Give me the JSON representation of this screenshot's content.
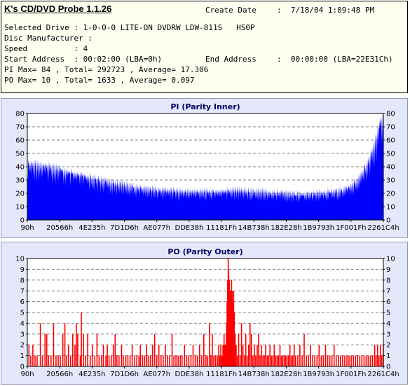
{
  "app": {
    "title": "K's CD/DVD Probe 1.1.26"
  },
  "info": {
    "create_date_label": "Create Date",
    "create_date_value": ":  7/18/04 1:09:48 PM",
    "selected_drive": "Selected Drive : 1-0-0-0 LITE-ON DVDRW LDW-811S   HS0P",
    "disc_manufacturer": "Disc Manufacturer :",
    "speed": "Speed          : 4",
    "start_address": "Start Address  : 00:02:00 (LBA=0h)",
    "end_address_label": "End Address",
    "end_address_value": ":  00:00:00 (LBA=22E31Ch)",
    "pi_summary": "PI Max= 84 , Total= 292723 , Average= 17.306",
    "po_summary": "PO Max= 10 , Total= 1633 , Average= 0.097"
  },
  "colors": {
    "pi_bar": "#0000ff",
    "po_bar": "#ff0000",
    "panel_bg": "#e4e8fa",
    "plot_bg": "#ffffff"
  },
  "chart_data": [
    {
      "type": "area",
      "title": "PI (Parity Inner)",
      "xlabel": "",
      "ylabel": "",
      "x_tick_labels": [
        "90h",
        "20566h",
        "4E235h",
        "7D1D6h",
        "AE077h",
        "DDE38h",
        "11181Fh",
        "14B738h",
        "182E28h",
        "1B9793h",
        "1F001Fh",
        "2261C4h"
      ],
      "ylim": [
        0,
        80
      ],
      "y_ticks": [
        0,
        10,
        20,
        30,
        40,
        50,
        60,
        70,
        80
      ],
      "grid": true,
      "series": [
        {
          "values": [
            42,
            43,
            42,
            41,
            41,
            40,
            39,
            37,
            36,
            35,
            34,
            33,
            32,
            31,
            30,
            29,
            28,
            27,
            27,
            26,
            25,
            24,
            24,
            23,
            23,
            22,
            22,
            22,
            22,
            21,
            21,
            21,
            21,
            21,
            21,
            21,
            21,
            21,
            22,
            22,
            22,
            22,
            21,
            21,
            21,
            21,
            20,
            20,
            20,
            20,
            19,
            19,
            19,
            19,
            19,
            20,
            20,
            20,
            21,
            21,
            22,
            24,
            26,
            30,
            36,
            44,
            55,
            70,
            84
          ]
        }
      ]
    },
    {
      "type": "bar",
      "title": "PO (Parity Outer)",
      "xlabel": "",
      "ylabel": "",
      "x_tick_labels": [
        "90h",
        "20566h",
        "4E235h",
        "7D1D6h",
        "AE077h",
        "DDE38h",
        "11181Fh",
        "14B738h",
        "182E28h",
        "1B9793h",
        "1F001Fh",
        "2261C4h"
      ],
      "ylim": [
        0,
        10
      ],
      "y_ticks": [
        0,
        1,
        2,
        3,
        4,
        5,
        6,
        7,
        8,
        9,
        10
      ],
      "grid": true,
      "series": [
        {
          "points": [
            [
              0.003,
              2
            ],
            [
              0.008,
              1
            ],
            [
              0.014,
              2
            ],
            [
              0.02,
              1
            ],
            [
              0.026,
              1
            ],
            [
              0.035,
              4
            ],
            [
              0.041,
              1
            ],
            [
              0.048,
              3
            ],
            [
              0.053,
              3
            ],
            [
              0.058,
              1
            ],
            [
              0.065,
              1
            ],
            [
              0.072,
              4
            ],
            [
              0.079,
              1
            ],
            [
              0.085,
              1
            ],
            [
              0.091,
              1
            ],
            [
              0.098,
              3
            ],
            [
              0.104,
              4
            ],
            [
              0.108,
              1
            ],
            [
              0.114,
              2
            ],
            [
              0.12,
              1
            ],
            [
              0.126,
              3
            ],
            [
              0.132,
              2
            ],
            [
              0.136,
              4
            ],
            [
              0.14,
              3
            ],
            [
              0.147,
              1
            ],
            [
              0.15,
              5
            ],
            [
              0.156,
              3
            ],
            [
              0.162,
              1
            ],
            [
              0.168,
              3
            ],
            [
              0.175,
              1
            ],
            [
              0.181,
              2
            ],
            [
              0.188,
              1
            ],
            [
              0.194,
              3
            ],
            [
              0.2,
              1
            ],
            [
              0.207,
              1
            ],
            [
              0.212,
              2
            ],
            [
              0.219,
              1
            ],
            [
              0.223,
              2
            ],
            [
              0.228,
              1
            ],
            [
              0.234,
              1
            ],
            [
              0.24,
              2
            ],
            [
              0.245,
              3
            ],
            [
              0.25,
              1
            ],
            [
              0.256,
              1
            ],
            [
              0.263,
              2
            ],
            [
              0.268,
              1
            ],
            [
              0.275,
              1
            ],
            [
              0.281,
              1
            ],
            [
              0.287,
              1
            ],
            [
              0.293,
              2
            ],
            [
              0.3,
              1
            ],
            [
              0.306,
              1
            ],
            [
              0.312,
              1
            ],
            [
              0.316,
              2
            ],
            [
              0.322,
              1
            ],
            [
              0.328,
              1
            ],
            [
              0.333,
              2
            ],
            [
              0.338,
              1
            ],
            [
              0.344,
              1
            ],
            [
              0.35,
              2
            ],
            [
              0.356,
              3
            ],
            [
              0.362,
              1
            ],
            [
              0.368,
              2
            ],
            [
              0.374,
              1
            ],
            [
              0.38,
              1
            ],
            [
              0.386,
              2
            ],
            [
              0.392,
              1
            ],
            [
              0.398,
              1
            ],
            [
              0.405,
              3
            ],
            [
              0.41,
              1
            ],
            [
              0.416,
              1
            ],
            [
              0.422,
              1
            ],
            [
              0.428,
              1
            ],
            [
              0.433,
              1
            ],
            [
              0.44,
              2
            ],
            [
              0.446,
              1
            ],
            [
              0.452,
              1
            ],
            [
              0.458,
              1
            ],
            [
              0.464,
              2
            ],
            [
              0.47,
              1
            ],
            [
              0.476,
              1
            ],
            [
              0.482,
              2
            ],
            [
              0.488,
              1
            ],
            [
              0.494,
              3
            ],
            [
              0.5,
              1
            ],
            [
              0.505,
              1
            ],
            [
              0.51,
              4
            ],
            [
              0.514,
              1
            ],
            [
              0.518,
              3
            ],
            [
              0.522,
              1
            ],
            [
              0.527,
              1
            ],
            [
              0.532,
              1
            ],
            [
              0.536,
              2
            ],
            [
              0.539,
              1
            ],
            [
              0.542,
              2
            ],
            [
              0.545,
              1
            ],
            [
              0.548,
              2
            ],
            [
              0.551,
              3
            ],
            [
              0.554,
              2
            ],
            [
              0.557,
              3
            ],
            [
              0.558,
              4
            ],
            [
              0.5595,
              6
            ],
            [
              0.561,
              8
            ],
            [
              0.5625,
              10
            ],
            [
              0.564,
              9
            ],
            [
              0.566,
              8
            ],
            [
              0.568,
              7
            ],
            [
              0.57,
              7
            ],
            [
              0.572,
              8
            ],
            [
              0.574,
              7
            ],
            [
              0.576,
              6
            ],
            [
              0.578,
              7
            ],
            [
              0.58,
              5
            ],
            [
              0.582,
              3
            ],
            [
              0.585,
              2
            ],
            [
              0.588,
              1
            ],
            [
              0.592,
              3
            ],
            [
              0.596,
              1
            ],
            [
              0.6,
              4
            ],
            [
              0.604,
              2
            ],
            [
              0.608,
              1
            ],
            [
              0.612,
              3
            ],
            [
              0.616,
              1
            ],
            [
              0.62,
              2
            ],
            [
              0.624,
              4
            ],
            [
              0.628,
              3
            ],
            [
              0.632,
              1
            ],
            [
              0.636,
              2
            ],
            [
              0.64,
              1
            ],
            [
              0.644,
              2
            ],
            [
              0.648,
              3
            ],
            [
              0.652,
              1
            ],
            [
              0.656,
              2
            ],
            [
              0.66,
              1
            ],
            [
              0.664,
              1
            ],
            [
              0.668,
              2
            ],
            [
              0.672,
              1
            ],
            [
              0.676,
              1
            ],
            [
              0.68,
              2
            ],
            [
              0.684,
              1
            ],
            [
              0.688,
              1
            ],
            [
              0.692,
              2
            ],
            [
              0.696,
              1
            ],
            [
              0.7,
              1
            ],
            [
              0.704,
              1
            ],
            [
              0.708,
              2
            ],
            [
              0.712,
              1
            ],
            [
              0.716,
              1
            ],
            [
              0.72,
              1
            ],
            [
              0.724,
              1
            ],
            [
              0.728,
              1
            ],
            [
              0.732,
              1
            ],
            [
              0.736,
              2
            ],
            [
              0.74,
              1
            ],
            [
              0.744,
              1
            ],
            [
              0.748,
              2
            ],
            [
              0.752,
              1
            ],
            [
              0.758,
              1
            ],
            [
              0.764,
              2
            ],
            [
              0.77,
              1
            ],
            [
              0.776,
              3
            ],
            [
              0.782,
              1
            ],
            [
              0.788,
              1
            ],
            [
              0.794,
              2
            ],
            [
              0.8,
              1
            ],
            [
              0.806,
              1
            ],
            [
              0.812,
              1
            ],
            [
              0.818,
              2
            ],
            [
              0.824,
              1
            ],
            [
              0.83,
              1
            ],
            [
              0.836,
              2
            ],
            [
              0.842,
              1
            ],
            [
              0.848,
              1
            ],
            [
              0.854,
              1
            ],
            [
              0.86,
              2
            ],
            [
              0.866,
              1
            ],
            [
              0.872,
              1
            ],
            [
              0.878,
              1
            ],
            [
              0.884,
              1
            ],
            [
              0.89,
              1
            ],
            [
              0.896,
              1
            ],
            [
              0.902,
              1
            ],
            [
              0.908,
              1
            ],
            [
              0.914,
              1
            ],
            [
              0.92,
              1
            ],
            [
              0.926,
              1
            ],
            [
              0.932,
              1
            ],
            [
              0.938,
              1
            ],
            [
              0.944,
              1
            ],
            [
              0.95,
              1
            ],
            [
              0.956,
              1
            ],
            [
              0.962,
              1
            ],
            [
              0.968,
              1
            ],
            [
              0.974,
              2
            ],
            [
              0.978,
              1
            ],
            [
              0.982,
              2
            ],
            [
              0.986,
              1
            ],
            [
              0.99,
              2
            ],
            [
              0.994,
              1
            ],
            [
              0.998,
              2
            ]
          ]
        }
      ]
    }
  ]
}
